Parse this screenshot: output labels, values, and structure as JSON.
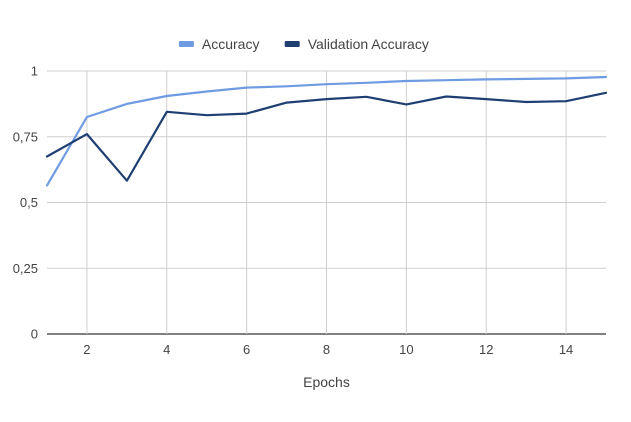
{
  "chart_data": {
    "type": "line",
    "title": "",
    "xlabel": "Epochs",
    "ylabel": "",
    "xlim": [
      1,
      15
    ],
    "ylim": [
      0,
      1
    ],
    "x_ticks": [
      2,
      4,
      6,
      8,
      10,
      12,
      14
    ],
    "y_ticks": [
      0,
      0.25,
      0.5,
      0.75,
      1
    ],
    "y_tick_labels": [
      "0",
      "0,25",
      "0,5",
      "0,75",
      "1"
    ],
    "grid": true,
    "legend_position": "top-center",
    "x": [
      1,
      2,
      3,
      4,
      5,
      6,
      7,
      8,
      9,
      10,
      11,
      12,
      13,
      14,
      15
    ],
    "series": [
      {
        "name": "Accuracy",
        "color": "#6f9be2",
        "values": [
          0.565,
          0.825,
          0.875,
          0.905,
          0.922,
          0.937,
          0.942,
          0.95,
          0.955,
          0.962,
          0.965,
          0.968,
          0.97,
          0.972,
          0.977
        ]
      },
      {
        "name": "Validation Accuracy",
        "color": "#1f3f73",
        "values": [
          0.675,
          0.76,
          0.583,
          0.845,
          0.832,
          0.838,
          0.88,
          0.893,
          0.902,
          0.873,
          0.903,
          0.893,
          0.882,
          0.885,
          0.917
        ]
      }
    ]
  }
}
